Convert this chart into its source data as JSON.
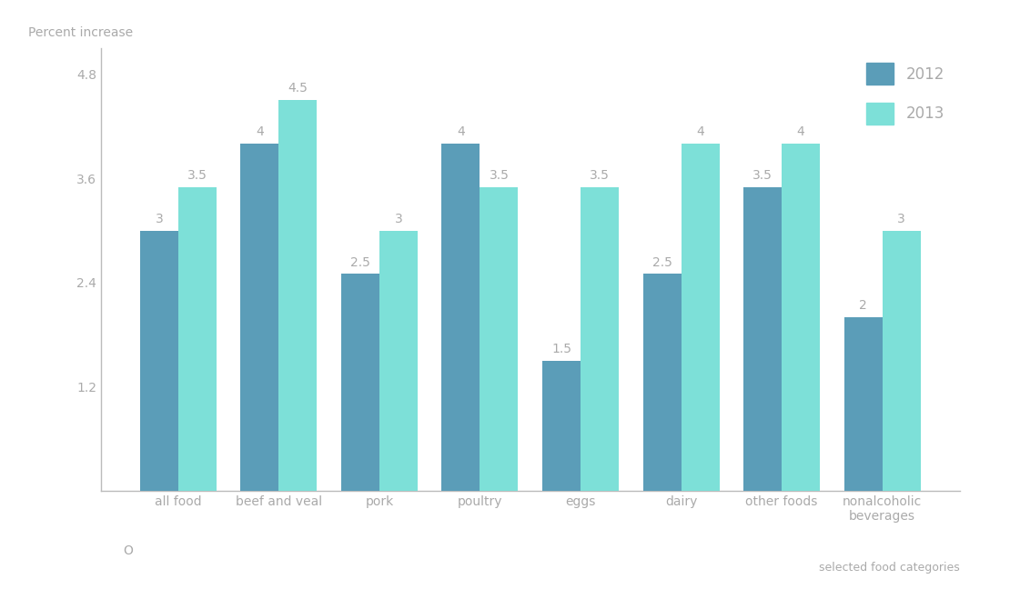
{
  "categories": [
    "all food",
    "beef and veal",
    "pork",
    "poultry",
    "eggs",
    "dairy",
    "other foods",
    "nonalcoholic\nbeverages"
  ],
  "values_2012": [
    3.0,
    4.0,
    2.5,
    4.0,
    1.5,
    2.5,
    3.5,
    2.0
  ],
  "values_2013": [
    3.5,
    4.5,
    3.0,
    3.5,
    3.5,
    4.0,
    4.0,
    3.0
  ],
  "color_2012": "#5b9db8",
  "color_2013": "#7de0d8",
  "ylabel": "Percent increase",
  "xlabel": "selected food categories",
  "ylim": [
    0,
    5.1
  ],
  "yticks": [
    1.2,
    2.4,
    3.6,
    4.8
  ],
  "ytick_labels": [
    "1.2",
    "2.4",
    "3.6",
    "4.8"
  ],
  "legend_labels": [
    "2012",
    "2013"
  ],
  "bar_width": 0.38,
  "label_color": "#aaaaaa",
  "label_fontsize": 10,
  "axis_color": "#bbbbbb",
  "tick_color": "#aaaaaa",
  "background_color": "#ffffff"
}
